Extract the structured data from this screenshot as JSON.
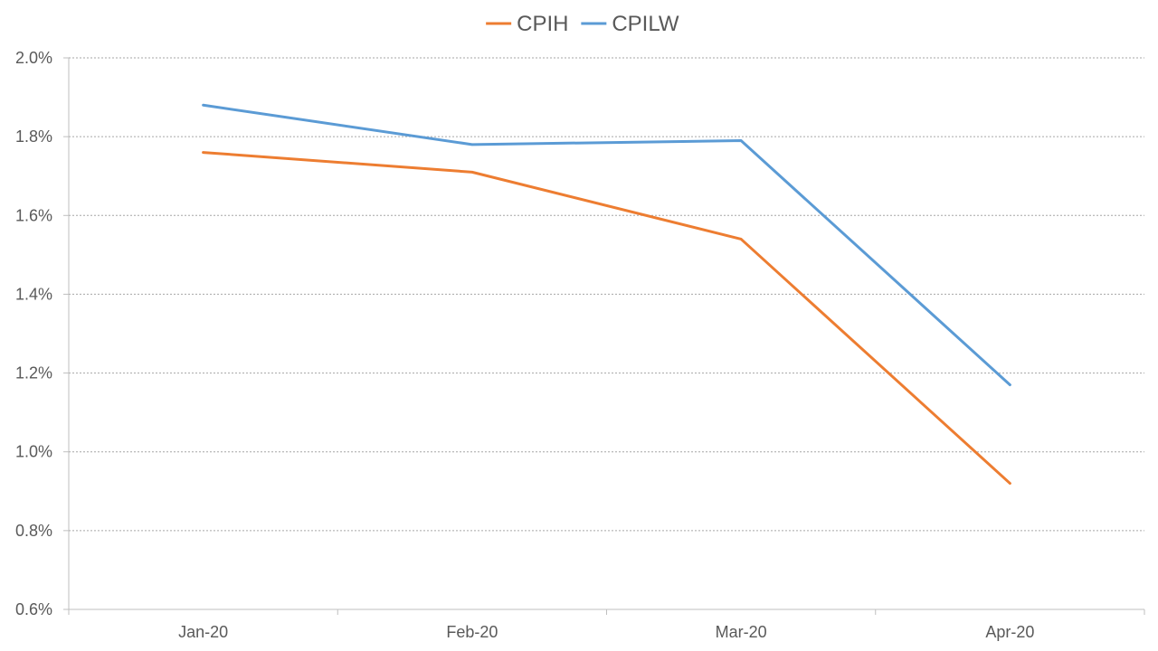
{
  "chart_data": {
    "type": "line",
    "title": "",
    "xlabel": "",
    "ylabel": "",
    "categories": [
      "Jan-20",
      "Feb-20",
      "Mar-20",
      "Apr-20"
    ],
    "series": [
      {
        "name": "CPIH",
        "color": "#ED7D31",
        "values": [
          1.76,
          1.71,
          1.54,
          0.92
        ]
      },
      {
        "name": "CPILW",
        "color": "#5B9BD5",
        "values": [
          1.88,
          1.78,
          1.79,
          1.17
        ]
      }
    ],
    "ylim": [
      0.6,
      2.0
    ],
    "yticks": [
      0.6,
      0.8,
      1.0,
      1.2,
      1.4,
      1.6,
      1.8,
      2.0
    ],
    "ytick_labels": [
      "0.6%",
      "0.8%",
      "1.0%",
      "1.2%",
      "1.4%",
      "1.6%",
      "1.8%",
      "2.0%"
    ],
    "grid": true,
    "legend_position": "top-center"
  }
}
